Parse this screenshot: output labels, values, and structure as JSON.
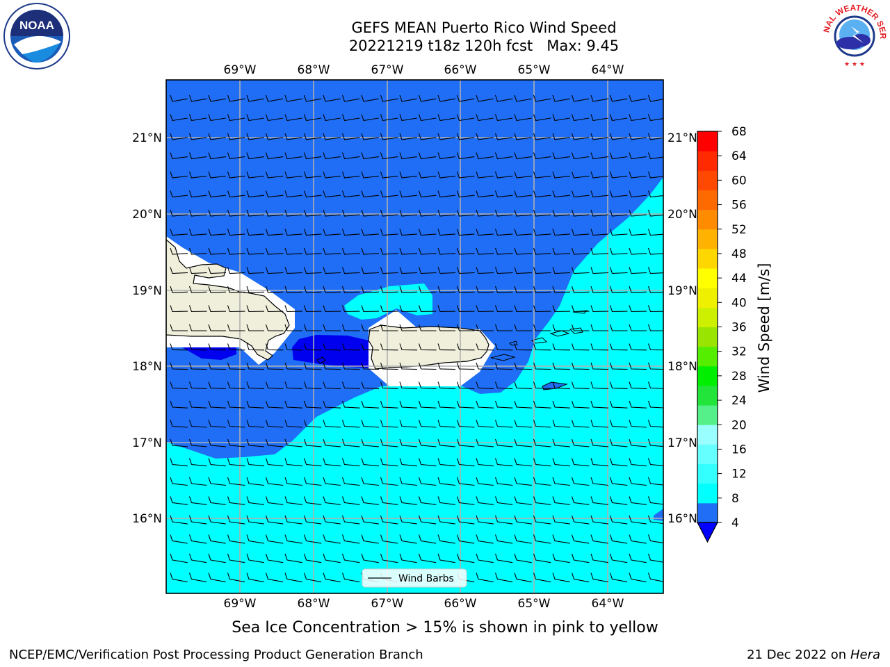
{
  "title_line1": "GEFS MEAN Puerto Rico Wind Speed",
  "title_line2": "20221219 t18z 120h fcst   Max: 9.45",
  "subnote": "Sea Ice Concentration > 15% is shown in pink to yellow",
  "footer_left": "NCEP/EMC/Verification Post Processing Product Generation Branch",
  "footer_right_date": "21 Dec 2022 on",
  "footer_right_machine": "Hera",
  "logos": {
    "noaa_text": "NOAA",
    "nws_text": "NATIONAL WEATHER SERVICE"
  },
  "map": {
    "lon_labels": [
      "69°W",
      "68°W",
      "67°W",
      "66°W",
      "65°W",
      "64°W"
    ],
    "lat_labels": [
      "21°N",
      "20°N",
      "19°N",
      "18°N",
      "17°N",
      "16°N"
    ],
    "legend_label": "Wind Barbs"
  },
  "colorbar": {
    "label": "Wind Speed [m/s]",
    "ticks": [
      4,
      8,
      12,
      16,
      20,
      24,
      28,
      32,
      36,
      40,
      44,
      48,
      52,
      56,
      60,
      64,
      68
    ],
    "under_color": "#0000ff",
    "colors": [
      "#1f6ef5",
      "#00ffff",
      "#33ffff",
      "#66ffff",
      "#99ffff",
      "#55f08a",
      "#22e43a",
      "#00ee00",
      "#55ee00",
      "#99e400",
      "#ccf000",
      "#eef000",
      "#ffff00",
      "#ffd700",
      "#ffb200",
      "#ff8c00",
      "#ff6a00",
      "#ff4800",
      "#ff2a00",
      "#ff0000"
    ]
  },
  "colors": {
    "ocean_mid": "#1f6ef5",
    "ocean_low": "#00ffff",
    "ocean_high": "#0000ee",
    "land": "#efefdc",
    "grid": "#b0b0b0"
  }
}
